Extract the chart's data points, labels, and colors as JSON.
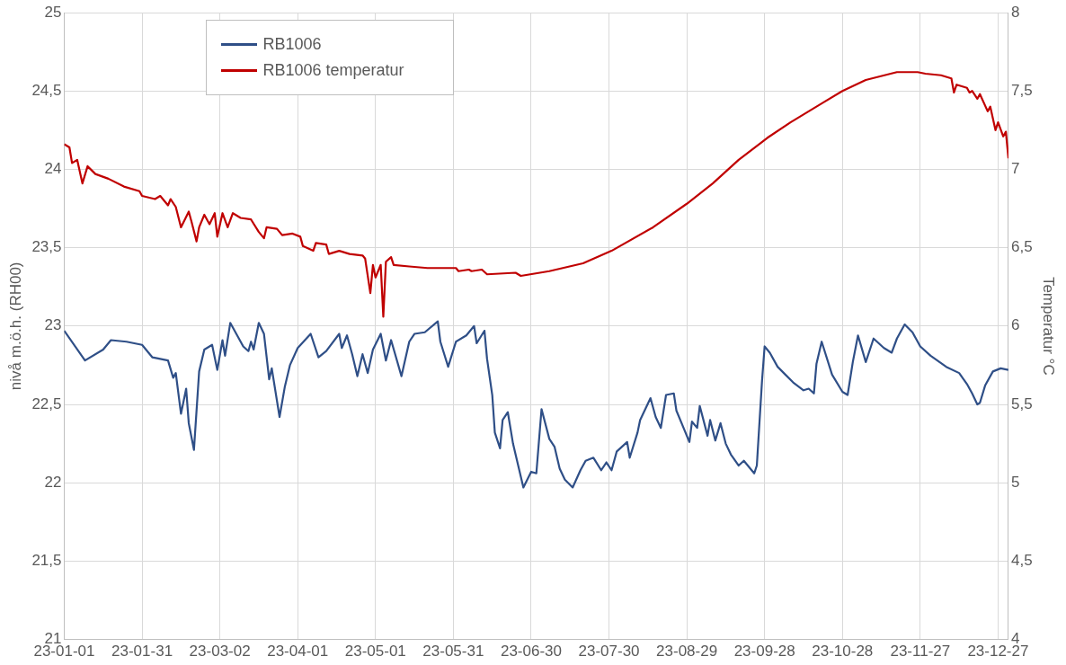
{
  "chart_data": {
    "type": "line",
    "ylabel": "nivå m.ö.h. (RH00)",
    "y2label": "Temperatur °C",
    "legend": "top left",
    "grid": true,
    "marker": "none",
    "line_style": "solid",
    "xlim": [
      "--01-01",
      "--12-31"
    ],
    "xticks": [
      {
        "value": "--01-01",
        "label": "23-01-01"
      },
      {
        "value": "--01-31",
        "label": "23-01-31"
      },
      {
        "value": "--03-02",
        "label": "23-03-02"
      },
      {
        "value": "--04-01",
        "label": "23-04-01"
      },
      {
        "value": "--05-01",
        "label": "23-05-01"
      },
      {
        "value": "--05-31",
        "label": "23-05-31"
      },
      {
        "value": "--06-30",
        "label": "23-06-30"
      },
      {
        "value": "--07-30",
        "label": "23-07-30"
      },
      {
        "value": "--08-29",
        "label": "23-08-29"
      },
      {
        "value": "--09-28",
        "label": "23-09-28"
      },
      {
        "value": "--10-28",
        "label": "23-10-28"
      },
      {
        "value": "--11-27",
        "label": "23-11-27"
      },
      {
        "value": "--12-27",
        "label": "23-12-27"
      }
    ],
    "ylim": [
      21,
      25
    ],
    "yticks": [
      21,
      {
        "value": 21.5,
        "label": "21,5"
      },
      22,
      {
        "value": 22.5,
        "label": "22,5"
      },
      23,
      {
        "value": 23.5,
        "label": "23,5"
      },
      24,
      {
        "value": 24.5,
        "label": "24,5"
      },
      25
    ],
    "y2lim": [
      4,
      8
    ],
    "y2ticks": [
      4,
      {
        "value": 4.5,
        "label": "4,5"
      },
      5,
      {
        "value": 5.5,
        "label": "5,5"
      },
      6,
      {
        "value": 6.5,
        "label": "6,5"
      },
      7,
      {
        "value": 7.5,
        "label": "7,5"
      },
      8
    ],
    "series": [
      {
        "name": "RB1006",
        "color": "#2f4f87",
        "x": [
          "--01-01",
          "--01-09",
          "--01-16",
          "--01-19",
          "--01-25",
          "--01-31",
          "--02-04",
          "--02-10",
          "--02-12",
          "--02-13",
          "--02-15",
          "--02-17",
          "--02-18",
          "--02-20",
          "--02-22",
          "--02-24",
          "--02-27",
          "--03-01",
          "--03-03",
          "--03-04",
          "--03-06",
          "--03-11",
          "--03-13",
          "--03-14",
          "--03-15",
          "--03-17",
          "--03-19",
          "--03-21",
          "--03-22",
          "--03-25",
          "--03-27",
          "--03-29",
          "--04-01",
          "--04-06",
          "--04-09",
          "--04-12",
          "--04-17",
          "--04-18",
          "--04-20",
          "--04-22",
          "--04-24",
          "--04-26",
          "--04-28",
          "--04-30",
          "--05-03",
          "--05-05",
          "--05-07",
          "--05-11",
          "--05-14",
          "--05-16",
          "--05-20",
          "--05-25",
          "--05-26",
          "--05-29",
          "--06-01",
          "--06-05",
          "--06-08",
          "--06-09",
          "--06-12",
          "--06-13",
          "--06-15",
          "--06-16",
          "--06-18",
          "--06-19",
          "--06-21",
          "--06-23",
          "--06-25",
          "--06-27",
          "--06-30",
          "--07-02",
          "--07-04",
          "--07-07",
          "--07-09",
          "--07-11",
          "--07-13",
          "--07-16",
          "--07-19",
          "--07-21",
          "--07-24",
          "--07-27",
          "--07-29",
          "--07-31",
          "--08-02",
          "--08-06",
          "--08-07",
          "--08-10",
          "--08-11",
          "--08-15",
          "--08-17",
          "--08-19",
          "--08-21",
          "--08-24",
          "--08-25",
          "--08-28",
          "--08-30",
          "--08-31",
          "--09-02",
          "--09-03",
          "--09-06",
          "--09-07",
          "--09-09",
          "--09-11",
          "--09-13",
          "--09-15",
          "--09-18",
          "--09-20",
          "--09-24",
          "--09-25",
          "--09-27",
          "--09-28",
          "--09-30",
          "--10-03",
          "--10-06",
          "--10-09",
          "--10-13",
          "--10-15",
          "--10-17",
          "--10-18",
          "--10-20",
          "--10-24",
          "--10-28",
          "--10-30",
          "--11-01",
          "--11-03",
          "--11-06",
          "--11-08",
          "--11-09",
          "--11-13",
          "--11-16",
          "--11-18",
          "--11-21",
          "--11-24",
          "--11-27",
          "--12-01",
          "--12-07",
          "--12-12",
          "--12-15",
          "--12-17",
          "--12-19",
          "--12-20",
          "--12-22",
          "--12-25",
          "--12-28",
          "--12-31"
        ],
        "values": [
          22.97,
          22.78,
          22.85,
          22.91,
          22.9,
          22.88,
          22.8,
          22.78,
          22.67,
          22.7,
          22.44,
          22.6,
          22.38,
          22.21,
          22.71,
          22.85,
          22.88,
          22.72,
          22.91,
          22.81,
          23.02,
          22.87,
          22.84,
          22.9,
          22.85,
          23.02,
          22.95,
          22.66,
          22.73,
          22.42,
          22.61,
          22.75,
          22.86,
          22.95,
          22.8,
          22.84,
          22.95,
          22.86,
          22.94,
          22.82,
          22.68,
          22.82,
          22.7,
          22.85,
          22.95,
          22.78,
          22.91,
          22.68,
          22.9,
          22.95,
          22.96,
          23.03,
          22.9,
          22.74,
          22.9,
          22.94,
          23.0,
          22.89,
          22.97,
          22.79,
          22.56,
          22.32,
          22.22,
          22.4,
          22.45,
          22.25,
          22.11,
          21.97,
          22.07,
          22.06,
          22.47,
          22.28,
          22.23,
          22.09,
          22.02,
          21.97,
          22.08,
          22.14,
          22.16,
          22.08,
          22.13,
          22.08,
          22.2,
          22.26,
          22.16,
          22.32,
          22.4,
          22.54,
          22.42,
          22.35,
          22.56,
          22.57,
          22.46,
          22.34,
          22.26,
          22.39,
          22.35,
          22.49,
          22.3,
          22.4,
          22.27,
          22.38,
          22.25,
          22.18,
          22.11,
          22.14,
          22.06,
          22.11,
          22.65,
          22.87,
          22.83,
          22.74,
          22.69,
          22.64,
          22.59,
          22.6,
          22.57,
          22.76,
          22.9,
          22.69,
          22.58,
          22.56,
          22.77,
          22.94,
          22.77,
          22.87,
          22.92,
          22.86,
          22.83,
          22.92,
          23.01,
          22.96,
          22.87,
          22.81,
          22.74,
          22.7,
          22.63,
          22.57,
          22.5,
          22.51,
          22.62,
          22.71,
          22.73,
          22.72
        ]
      },
      {
        "name": "RB1006 temperatur",
        "color": "#c00000",
        "axis": "y2",
        "x": [
          "--01-01",
          "--01-03",
          "--01-04",
          "--01-06",
          "--01-08",
          "--01-10",
          "--01-13",
          "--01-18",
          "--01-24",
          "--01-30",
          "--01-31",
          "--02-05",
          "--02-07",
          "--02-10",
          "--02-11",
          "--02-13",
          "--02-15",
          "--02-18",
          "--02-19",
          "--02-21",
          "--02-22",
          "--02-24",
          "--02-26",
          "--02-28",
          "--03-01",
          "--03-03",
          "--03-05",
          "--03-07",
          "--03-10",
          "--03-14",
          "--03-17",
          "--03-19",
          "--03-20",
          "--03-24",
          "--03-26",
          "--03-30",
          "--04-02",
          "--04-03",
          "--04-07",
          "--04-08",
          "--04-12",
          "--04-13",
          "--04-17",
          "--04-21",
          "--04-26",
          "--04-27",
          "--04-29",
          "--04-30",
          "--05-01",
          "--05-03",
          "--05-04",
          "--05-05",
          "--05-07",
          "--05-08",
          "--05-14",
          "--05-21",
          "--06-01",
          "--06-02",
          "--06-06",
          "--06-07",
          "--06-11",
          "--06-13",
          "--06-24",
          "--06-26",
          "--07-07",
          "--07-20",
          "--07-31",
          "--08-16",
          "--08-29",
          "--09-08",
          "--09-18",
          "--09-29",
          "--10-08",
          "--10-21",
          "--10-28",
          "--11-06",
          "--11-18",
          "--11-26",
          "--11-29",
          "--12-05",
          "--12-09",
          "--12-10",
          "--12-11",
          "--12-15",
          "--12-16",
          "--12-17",
          "--12-19",
          "--12-20",
          "--12-23",
          "--12-24",
          "--12-26",
          "--12-27",
          "--12-29",
          "--12-30",
          "--12-31"
        ],
        "values": [
          7.16,
          7.14,
          7.04,
          7.06,
          6.91,
          7.02,
          6.97,
          6.94,
          6.89,
          6.86,
          6.83,
          6.81,
          6.83,
          6.77,
          6.81,
          6.76,
          6.63,
          6.73,
          6.67,
          6.54,
          6.63,
          6.71,
          6.65,
          6.72,
          6.57,
          6.72,
          6.63,
          6.72,
          6.69,
          6.68,
          6.6,
          6.56,
          6.63,
          6.62,
          6.58,
          6.59,
          6.57,
          6.51,
          6.48,
          6.53,
          6.52,
          6.46,
          6.48,
          6.46,
          6.45,
          6.43,
          6.21,
          6.39,
          6.31,
          6.39,
          6.06,
          6.41,
          6.44,
          6.39,
          6.38,
          6.37,
          6.37,
          6.35,
          6.36,
          6.35,
          6.36,
          6.33,
          6.34,
          6.32,
          6.35,
          6.4,
          6.48,
          6.63,
          6.78,
          6.91,
          7.06,
          7.2,
          7.3,
          7.43,
          7.5,
          7.57,
          7.62,
          7.62,
          7.61,
          7.6,
          7.58,
          7.49,
          7.54,
          7.52,
          7.49,
          7.5,
          7.45,
          7.48,
          7.37,
          7.4,
          7.25,
          7.3,
          7.21,
          7.24,
          7.07
        ]
      }
    ]
  }
}
